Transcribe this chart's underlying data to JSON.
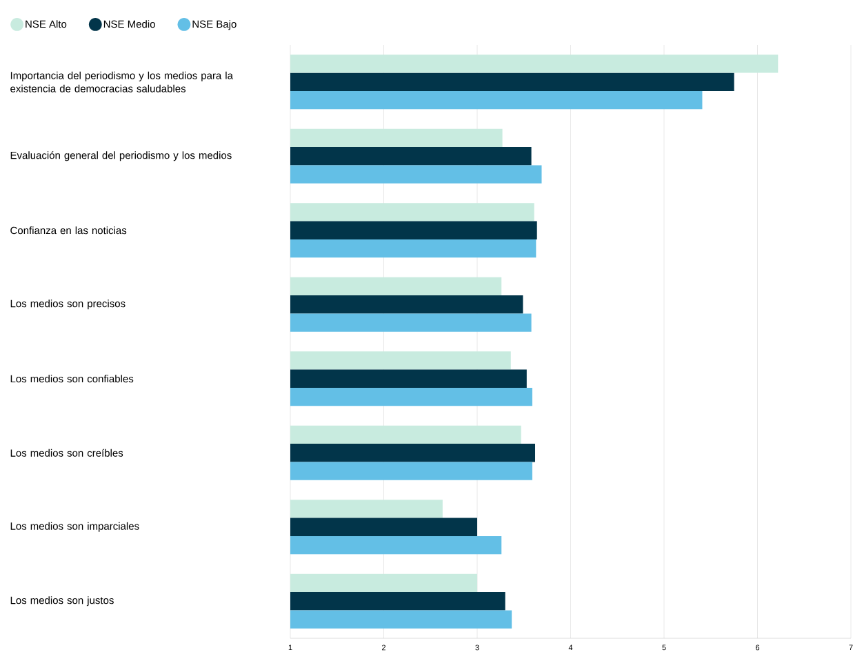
{
  "chart_data": {
    "type": "bar",
    "orientation": "horizontal",
    "categories": [
      "Importancia del periodismo y los medios para la existencia de democracias saludables",
      "Evaluación general del periodismo y los medios",
      "Confianza en las noticias",
      "Los medios son precisos",
      "Los medios son confiables",
      "Los medios son creíbles",
      "Los medios son imparciales",
      "Los medios son justos"
    ],
    "series": [
      {
        "name": "NSE Alto",
        "color": "#c8ebdf",
        "values": [
          6.22,
          3.27,
          3.61,
          3.26,
          3.36,
          3.47,
          2.63,
          3.0
        ]
      },
      {
        "name": "NSE Medio",
        "color": "#02354a",
        "values": [
          5.75,
          3.58,
          3.64,
          3.49,
          3.53,
          3.62,
          3.0,
          3.3
        ]
      },
      {
        "name": "NSE Bajo",
        "color": "#63bfe6",
        "values": [
          5.41,
          3.69,
          3.63,
          3.58,
          3.59,
          3.59,
          3.26,
          3.37
        ]
      }
    ],
    "xlim": [
      1,
      7
    ],
    "xticks": [
      1,
      2,
      3,
      4,
      5,
      6,
      7
    ],
    "grid": "x",
    "legend": "top left"
  }
}
